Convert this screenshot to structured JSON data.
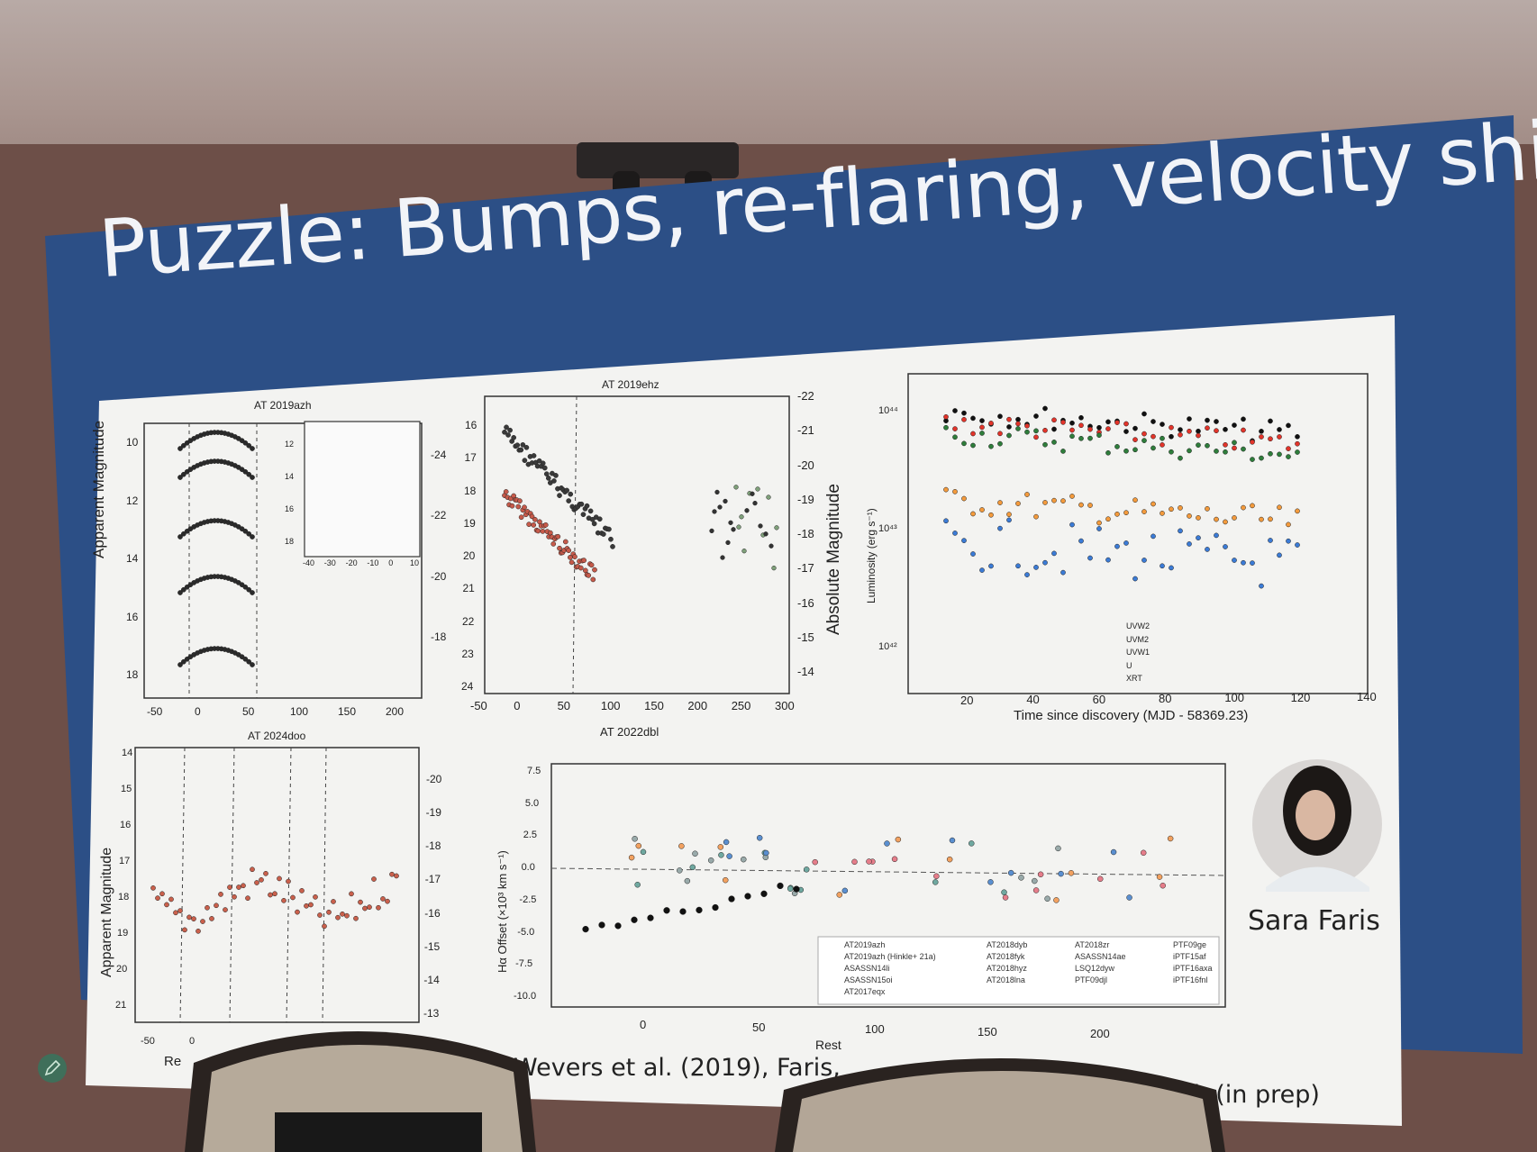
{
  "slide": {
    "title": "Puzzle: Bumps, re-flaring, velocity shifts",
    "speaker_name": "Sara Faris",
    "citation_left": "Wevers et al. (2019), Faris,",
    "citation_right": "al. (in prep)"
  },
  "panels": {
    "p1": {
      "title": "AT 2019azh",
      "ylabel": "Apparent Magnitude",
      "yticks": [
        "10",
        "12",
        "14",
        "16",
        "18"
      ],
      "xticks": [
        "-50",
        "0",
        "50",
        "100",
        "150",
        "200"
      ],
      "right_ticks": [
        "-24",
        "-22",
        "-20",
        "-18"
      ],
      "inset_yticks": [
        "12",
        "14",
        "16",
        "18"
      ],
      "inset_xticks": [
        "-40",
        "-30",
        "-20",
        "-10",
        "0",
        "10"
      ]
    },
    "p2": {
      "title": "AT 2019ehz",
      "subtitle_below": "AT 2022dbl",
      "ylabel": "Absolute Magnitude",
      "yticks": [
        "16",
        "17",
        "18",
        "19",
        "20",
        "21",
        "22",
        "23",
        "24"
      ],
      "xticks": [
        "-50",
        "0",
        "50",
        "100",
        "150",
        "200",
        "250",
        "300"
      ],
      "right_ticks": [
        "-22",
        "-21",
        "-20",
        "-19",
        "-18",
        "-17",
        "-16",
        "-15",
        "-14"
      ]
    },
    "p3": {
      "ylabel": "Luminosity (erg s⁻¹)",
      "xlabel": "Time since discovery (MJD - 58369.23)",
      "yticks": [
        "10⁴⁴",
        "10⁴³",
        "10⁴²"
      ],
      "xticks": [
        "20",
        "40",
        "60",
        "80",
        "100",
        "120",
        "140"
      ],
      "legend": [
        "UVW2",
        "UVM2",
        "UVW1",
        "U",
        "XRT"
      ]
    },
    "p4": {
      "title": "AT 2024doo",
      "ylabel": "Apparent Magnitude",
      "yticks": [
        "14",
        "15",
        "16",
        "17",
        "18",
        "19",
        "20",
        "21"
      ],
      "right_ticks": [
        "-20",
        "-19",
        "-18",
        "-17",
        "-16",
        "-15",
        "-14",
        "-13"
      ],
      "xticks": [
        "-50",
        "0"
      ],
      "xlabel_partial": "Re"
    },
    "p5": {
      "ylabel": "Hα Offset (×10³ km s⁻¹)",
      "yticks": [
        "7.5",
        "5.0",
        "2.5",
        "0.0",
        "-2.5",
        "-5.0",
        "-7.5",
        "-10.0"
      ],
      "xticks": [
        "0",
        "50",
        "100",
        "150",
        "200"
      ],
      "xlabel_partial": "Rest",
      "legend": [
        "AT2019azh",
        "AT2019azh (Hinkle+ 21a)",
        "ASASSN14li",
        "ASASSN15oi",
        "AT2017eqx",
        "AT2018dyb",
        "AT2018fyk",
        "AT2018hyz",
        "AT2018lna",
        "AT2018zr",
        "ASASSN14ae",
        "LSQ12dyw",
        "PTF09djl",
        "PTF09ge",
        "iPTF15af",
        "iPTF16axa",
        "iPTF16fnl"
      ]
    }
  }
}
